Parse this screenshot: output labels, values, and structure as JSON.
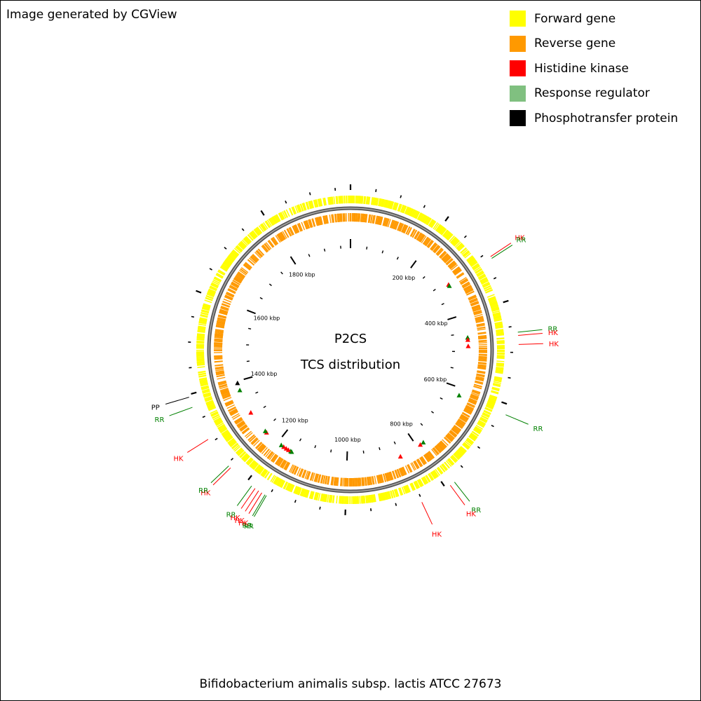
{
  "credit": "Image generated by CGView",
  "center_title": "P2CS",
  "center_subtitle": "TCS distribution",
  "organism": "Bifidobacterium animalis subsp. lactis ATCC 27673",
  "legend": [
    {
      "label": "Forward gene",
      "color": "#ffff00"
    },
    {
      "label": "Reverse gene",
      "color": "#ff9900"
    },
    {
      "label": "Histidine kinase",
      "color": "#ff0000"
    },
    {
      "label": "Response regulator",
      "color": "#80c080"
    },
    {
      "label": "Phosphotransfer protein",
      "color": "#000000"
    }
  ],
  "ruler": {
    "unit": "kbp",
    "ticks_kbp": [
      200,
      400,
      600,
      800,
      1000,
      1200,
      1400,
      1600,
      1800
    ],
    "tick_labels": [
      "200 kbp",
      "400 kbp",
      "600 kbp",
      "800 kbp",
      "1000 kbp",
      "1200 kbp",
      "1400 kbp",
      "1600 kbp",
      "1800 kbp"
    ]
  },
  "genome_length_kbp": 1980,
  "features": [
    {
      "type": "HK",
      "label": "HK",
      "kbp": 310
    },
    {
      "type": "RR",
      "label": "RR",
      "kbp": 314
    },
    {
      "type": "RR",
      "label": "RR",
      "kbp": 462
    },
    {
      "type": "HK",
      "label": "HK",
      "kbp": 468
    },
    {
      "type": "HK",
      "label": "HK",
      "kbp": 485
    },
    {
      "type": "RR",
      "label": "RR",
      "kbp": 620
    },
    {
      "type": "RR",
      "label": "RR",
      "kbp": 780
    },
    {
      "type": "HK",
      "label": "HK",
      "kbp": 790
    },
    {
      "type": "HK",
      "label": "HK",
      "kbp": 852
    },
    {
      "type": "RR",
      "label": "RR",
      "kbp": 1155
    },
    {
      "type": "RR",
      "label": "RR",
      "kbp": 1158
    },
    {
      "type": "HK",
      "label": "HK",
      "kbp": 1165
    },
    {
      "type": "HK",
      "label": "HK",
      "kbp": 1172
    },
    {
      "type": "HK",
      "label": "HK",
      "kbp": 1180
    },
    {
      "type": "RR",
      "label": "RR",
      "kbp": 1188
    },
    {
      "type": "HK",
      "label": "HK",
      "kbp": 1240
    },
    {
      "type": "RR",
      "label": "RR",
      "kbp": 1245
    },
    {
      "type": "HK",
      "label": "HK",
      "kbp": 1308
    },
    {
      "type": "RR",
      "label": "RR",
      "kbp": 1375
    },
    {
      "type": "PP",
      "label": "PP",
      "kbp": 1395
    }
  ]
}
